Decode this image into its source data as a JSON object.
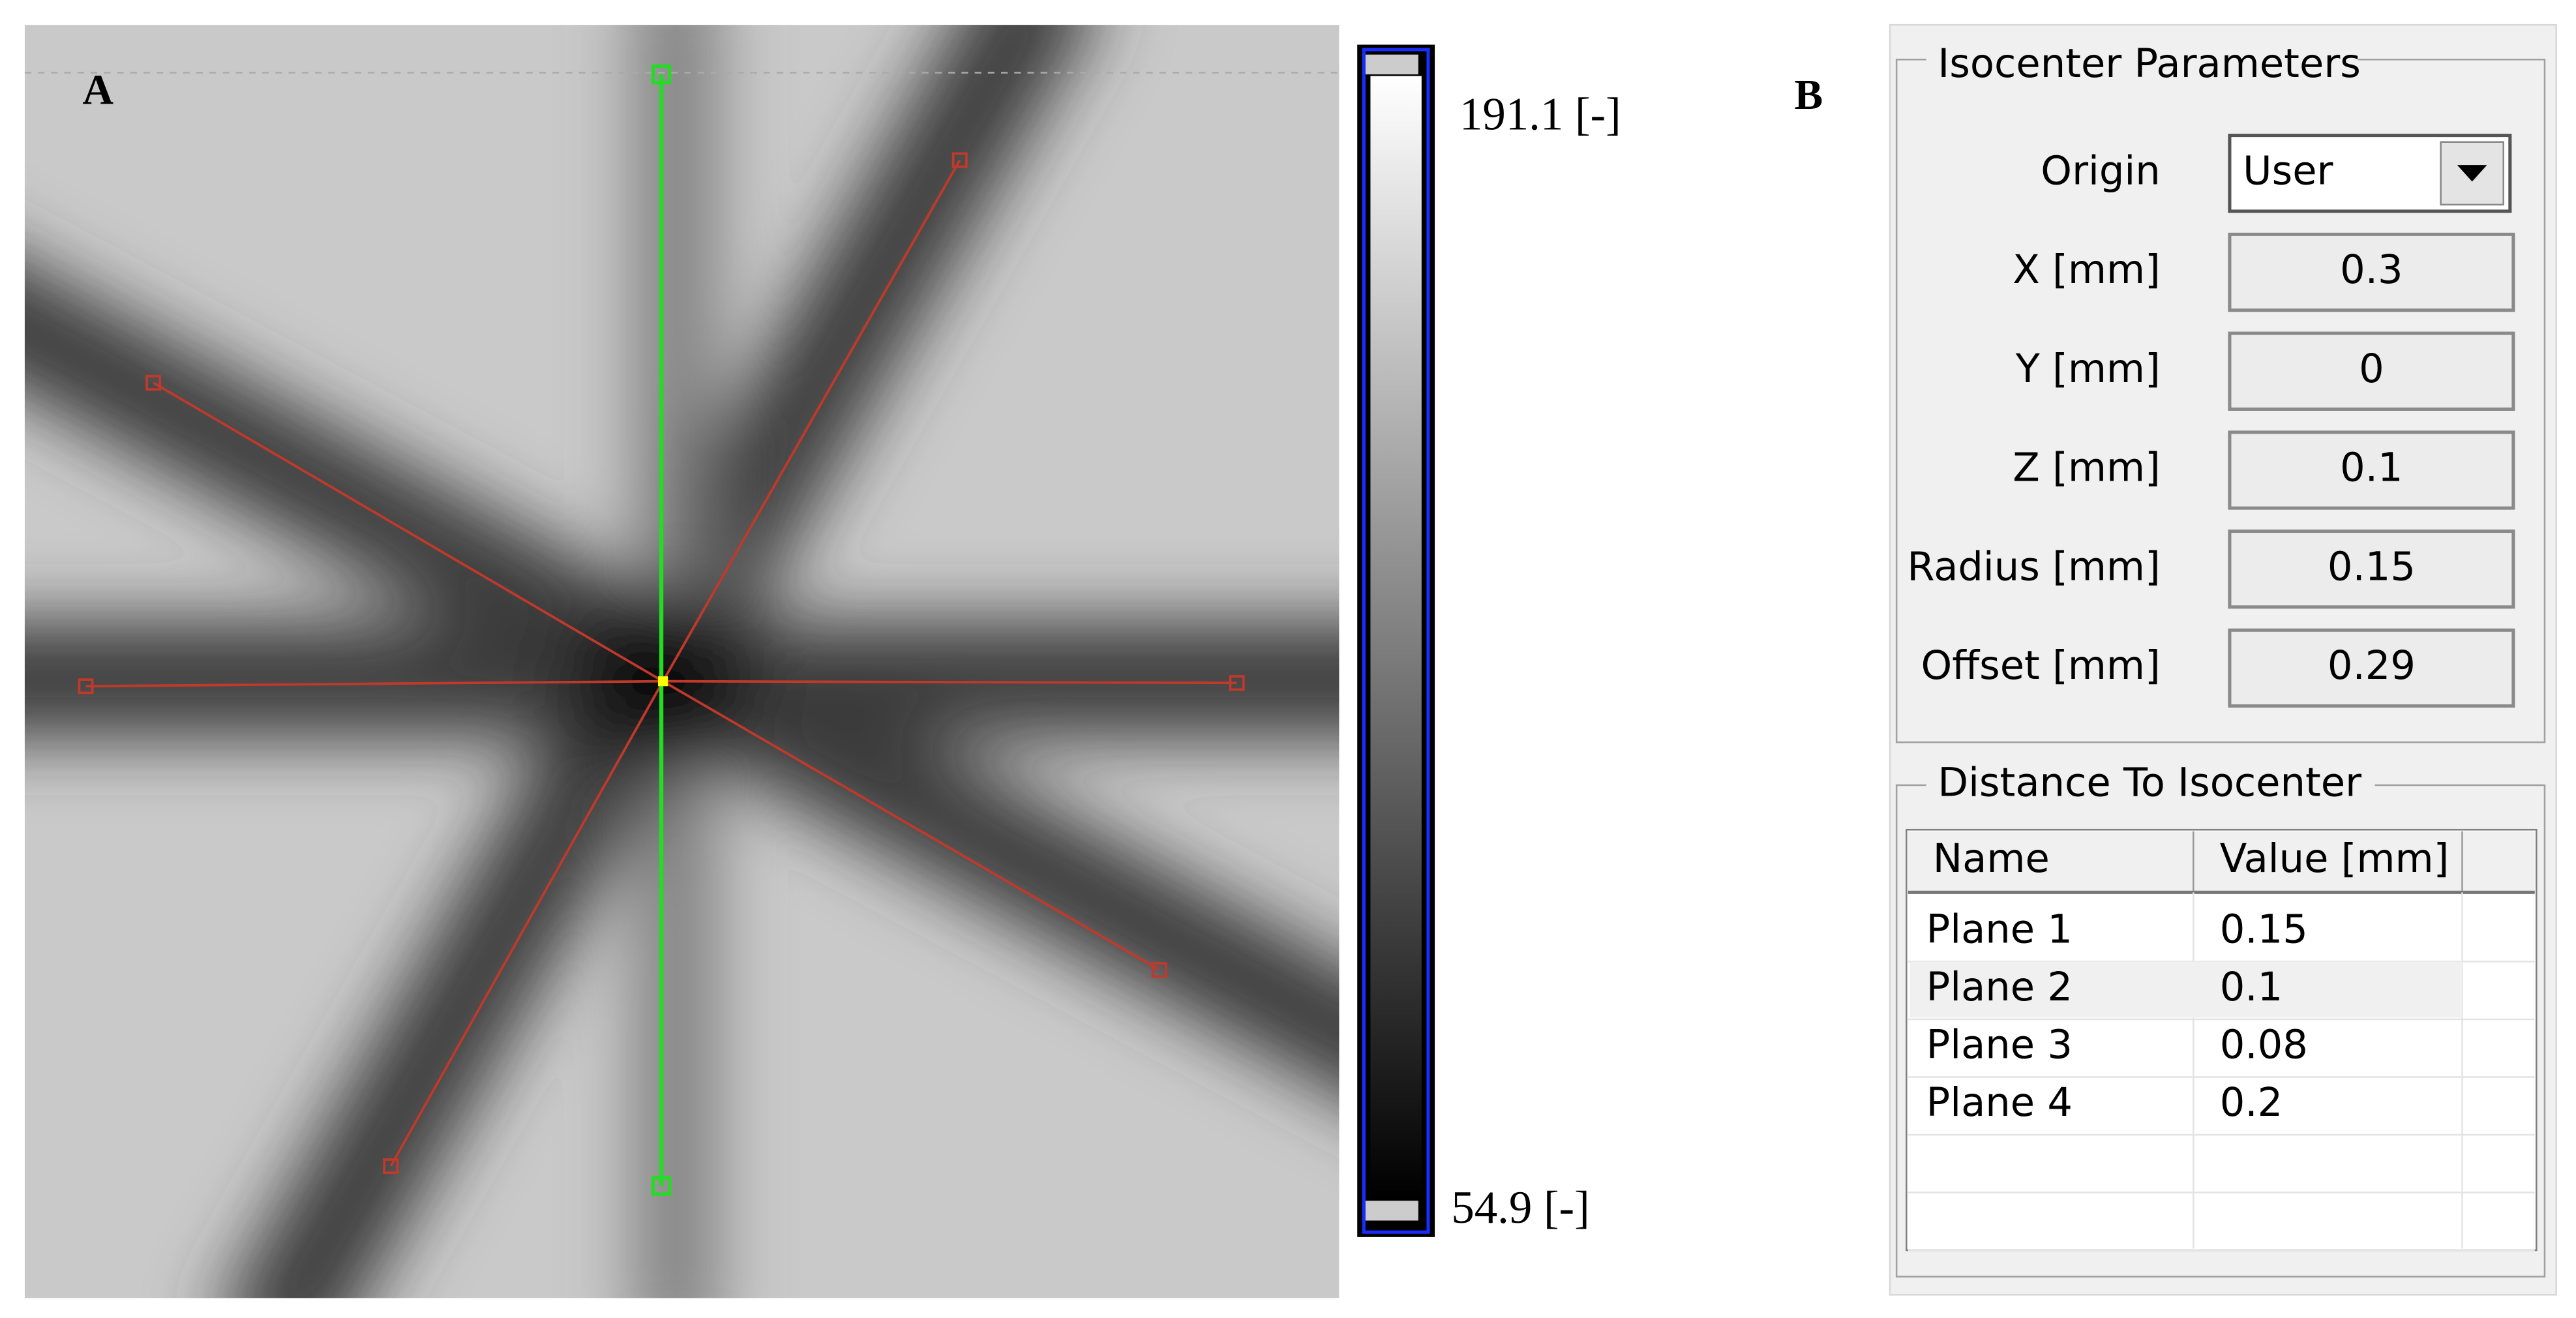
{
  "panel_a": {
    "label": "A",
    "colorbar": {
      "max_label": "191.1 [-]",
      "min_label": "54.9 [-]"
    }
  },
  "panel_b": {
    "label": "B",
    "isocenter_parameters": {
      "title": "Isocenter Parameters",
      "fields": [
        {
          "label": "Origin",
          "value": "User"
        },
        {
          "label": "X [mm]",
          "value": "0.3"
        },
        {
          "label": "Y [mm]",
          "value": "0"
        },
        {
          "label": "Z [mm]",
          "value": "0.1"
        },
        {
          "label": "Radius [mm]",
          "value": "0.15"
        },
        {
          "label": "Offset [mm]",
          "value": "0.29"
        }
      ]
    },
    "distance_to_isocenter": {
      "title": "Distance To Isocenter",
      "columns": [
        "Name",
        "Value [mm]"
      ],
      "rows": [
        [
          "Plane 1",
          "0.15"
        ],
        [
          "Plane 2",
          "0.1"
        ],
        [
          "Plane 3",
          "0.08"
        ],
        [
          "Plane 4",
          "0.2"
        ]
      ]
    }
  }
}
